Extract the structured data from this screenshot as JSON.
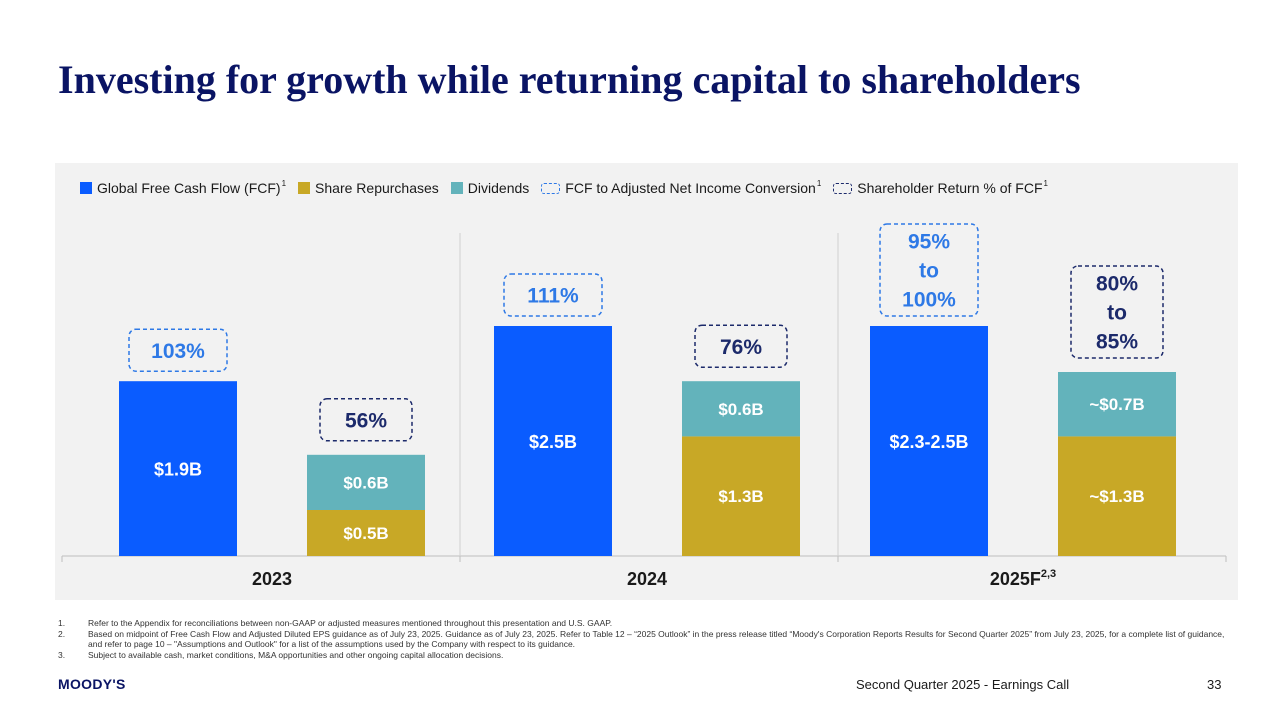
{
  "title": "Investing for growth while returning capital to shareholders",
  "colors": {
    "fcf": "#0a5cff",
    "repurchases": "#c8a826",
    "dividends": "#63b3bb",
    "conversion_box": "#2e79e6",
    "return_box": "#1c2a6b",
    "title": "#0a1464"
  },
  "legend": [
    {
      "label": "Global Free Cash Flow (FCF)",
      "sup": "1",
      "style": "solid",
      "color": "#0a5cff",
      "icon": "fcf-swatch"
    },
    {
      "label": "Share Repurchases",
      "sup": "",
      "style": "solid",
      "color": "#c8a826",
      "icon": "repurchases-swatch"
    },
    {
      "label": "Dividends",
      "sup": "",
      "style": "solid",
      "color": "#63b3bb",
      "icon": "dividends-swatch"
    },
    {
      "label": "FCF to Adjusted Net Income Conversion",
      "sup": "1",
      "style": "dashed",
      "color": "#2e79e6",
      "icon": "conversion-dashed-swatch"
    },
    {
      "label": "Shareholder Return % of FCF",
      "sup": "1",
      "style": "dashed",
      "color": "#1c2a6b",
      "icon": "return-dashed-swatch"
    }
  ],
  "chart_data": {
    "type": "bar",
    "title": "",
    "units": "$B",
    "ylim": [
      0,
      3.2
    ],
    "categories": [
      "2023",
      "2024",
      "2025F"
    ],
    "category_sup": [
      "",
      "",
      "2,3"
    ],
    "series": [
      {
        "name": "Global Free Cash Flow (FCF)",
        "values": [
          1.9,
          2.5,
          2.5
        ],
        "labels": [
          "$1.9B",
          "$2.5B",
          "$2.3-2.5B"
        ]
      },
      {
        "name": "Share Repurchases",
        "values": [
          0.5,
          1.3,
          1.3
        ],
        "labels": [
          "$0.5B",
          "$1.3B",
          "~$1.3B"
        ]
      },
      {
        "name": "Dividends",
        "values": [
          0.6,
          0.6,
          0.7
        ],
        "labels": [
          "$0.6B",
          "$0.6B",
          "~$0.7B"
        ]
      }
    ],
    "annotations": {
      "fcf_conversion": [
        "103%",
        "111%",
        "95%\nto\n100%"
      ],
      "shareholder_return": [
        "56%",
        "76%",
        "80%\nto\n85%"
      ]
    }
  },
  "footnotes": [
    {
      "num": "1.",
      "text": "Refer to the Appendix for reconciliations between non-GAAP or adjusted measures mentioned throughout this presentation and U.S. GAAP."
    },
    {
      "num": "2.",
      "text": "Based on midpoint of Free Cash Flow and Adjusted Diluted EPS guidance as of July 23, 2025. Guidance as of July 23, 2025. Refer to Table 12 – “2025 Outlook” in the press release titled “Moody's Corporation Reports Results for Second Quarter 2025” from July 23, 2025, for a complete list of guidance, and refer to page 10 – \"Assumptions and Outlook\" for a list of the assumptions used by the Company with respect to its guidance."
    },
    {
      "num": "3.",
      "text": "Subject to available cash, market conditions, M&A opportunities and other ongoing capital allocation decisions."
    }
  ],
  "logo": "MOODY'S",
  "footer": {
    "event": "Second Quarter 2025 - Earnings Call",
    "page": "33"
  }
}
